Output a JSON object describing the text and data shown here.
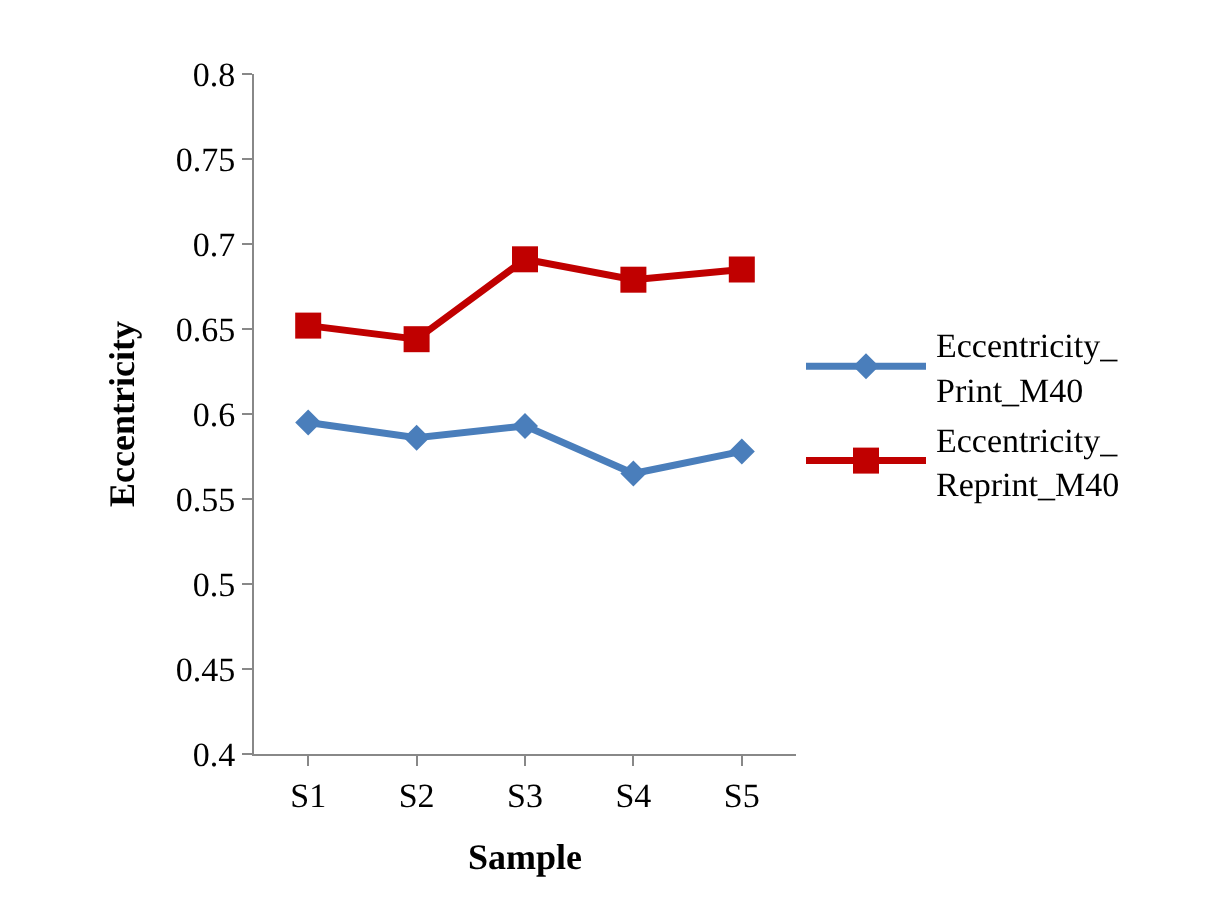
{
  "chart_data": {
    "type": "line",
    "xlabel": "Sample",
    "ylabel": "Eccentricity",
    "categories": [
      "S1",
      "S2",
      "S3",
      "S4",
      "S5"
    ],
    "series": [
      {
        "name": "Eccentricity_Print_M40",
        "color": "#4a7ebb",
        "marker": "diamond",
        "values": [
          0.595,
          0.586,
          0.593,
          0.565,
          0.578
        ]
      },
      {
        "name": "Eccentricity_Reprint_M40",
        "color": "#c00000",
        "marker": "square",
        "values": [
          0.652,
          0.644,
          0.691,
          0.679,
          0.685
        ]
      }
    ],
    "ylim": [
      0.4,
      0.8
    ],
    "yticks": [
      0.4,
      0.45,
      0.5,
      0.55,
      0.6,
      0.65,
      0.7,
      0.75,
      0.8
    ],
    "legend": "right",
    "line_style": "solid"
  }
}
